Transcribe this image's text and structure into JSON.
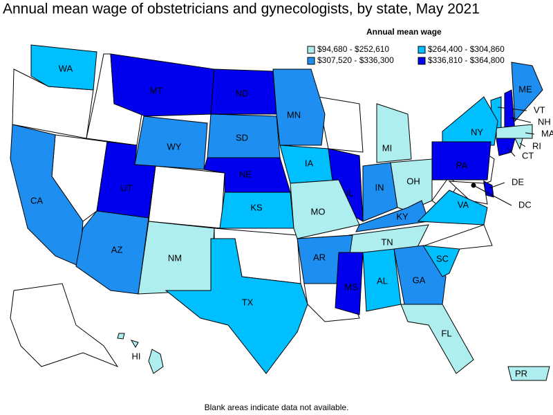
{
  "title": "Annual mean wage of obstetricians and gynecologists, by state, May 2021",
  "legend_title": "Annual mean wage",
  "legend": [
    {
      "label": "$94,680 - $252,610",
      "color": "#aeeeee"
    },
    {
      "label": "$264,400 - $304,860",
      "color": "#00bfff"
    },
    {
      "label": "$307,520 - $336,300",
      "color": "#1e8ff0"
    },
    {
      "label": "$336,810 - $364,800",
      "color": "#0000ee"
    }
  ],
  "states": [
    {
      "label": "WA",
      "bin": 1
    },
    {
      "label": "MT",
      "bin": 3
    },
    {
      "label": "ND",
      "bin": 3
    },
    {
      "label": "MN",
      "bin": 2
    },
    {
      "label": "ME",
      "bin": 2
    },
    {
      "label": "VT",
      "bin": 1
    },
    {
      "label": "NH",
      "bin": 3
    },
    {
      "label": "MA",
      "bin": 0
    },
    {
      "label": "RI",
      "bin": 0
    },
    {
      "label": "CT",
      "bin": 3
    },
    {
      "label": "NY",
      "bin": 1
    },
    {
      "label": "PA",
      "bin": 3
    },
    {
      "label": "DE",
      "bin": 3
    },
    {
      "label": "DC",
      "bin": 3
    },
    {
      "label": "MI",
      "bin": 0
    },
    {
      "label": "WY",
      "bin": 2
    },
    {
      "label": "SD",
      "bin": 2
    },
    {
      "label": "IA",
      "bin": 1
    },
    {
      "label": "NE",
      "bin": 3
    },
    {
      "label": "IL",
      "bin": 3
    },
    {
      "label": "IN",
      "bin": 2
    },
    {
      "label": "OH",
      "bin": 0
    },
    {
      "label": "CA",
      "bin": 2
    },
    {
      "label": "UT",
      "bin": 3
    },
    {
      "label": "KS",
      "bin": 1
    },
    {
      "label": "MO",
      "bin": 0
    },
    {
      "label": "KY",
      "bin": 2
    },
    {
      "label": "VA",
      "bin": 1
    },
    {
      "label": "TN",
      "bin": 0
    },
    {
      "label": "AZ",
      "bin": 2
    },
    {
      "label": "NM",
      "bin": 0
    },
    {
      "label": "AR",
      "bin": 2
    },
    {
      "label": "MS",
      "bin": 3
    },
    {
      "label": "AL",
      "bin": 1
    },
    {
      "label": "GA",
      "bin": 2
    },
    {
      "label": "SC",
      "bin": 1
    },
    {
      "label": "TX",
      "bin": 1
    },
    {
      "label": "FL",
      "bin": 0
    },
    {
      "label": "HI",
      "bin": 0
    },
    {
      "label": "PR",
      "bin": 0
    }
  ],
  "footnote": "Blank areas indicate data not available."
}
